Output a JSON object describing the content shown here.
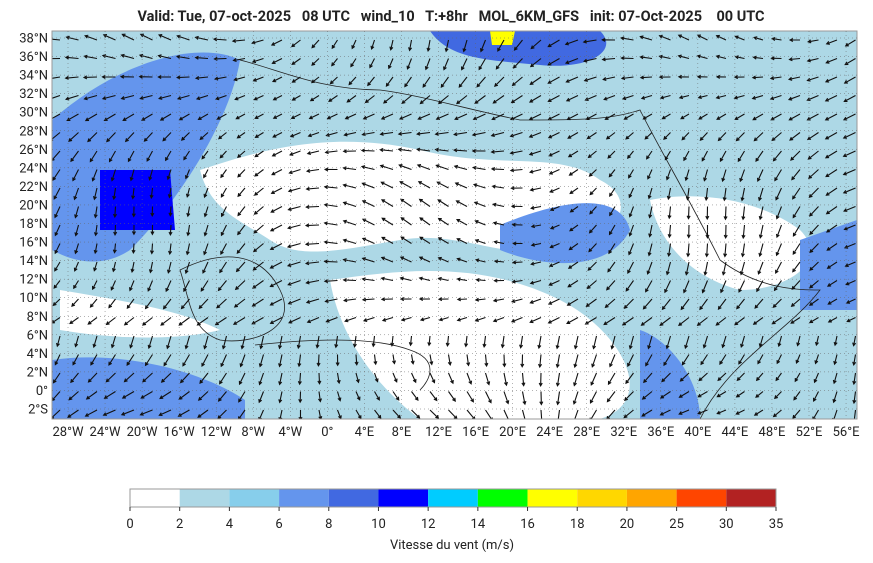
{
  "title": "Valid: Tue, 07-oct-2025   08 UTC   wind_10   T:+8hr   MOL_6KM_GFS   init: 07-Oct-2025    00 UTC",
  "lat_labels": [
    "38°N",
    "36°N",
    "34°N",
    "32°N",
    "30°N",
    "28°N",
    "26°N",
    "24°N",
    "22°N",
    "20°N",
    "18°N",
    "16°N",
    "14°N",
    "12°N",
    "10°N",
    "8°N",
    "6°N",
    "4°N",
    "2°N",
    "0°",
    "2°S"
  ],
  "lon_labels": [
    "28°W",
    "24°W",
    "20°W",
    "16°W",
    "12°W",
    "8°W",
    "4°W",
    "0°",
    "4°E",
    "8°E",
    "12°E",
    "16°E",
    "20°E",
    "24°E",
    "28°E",
    "32°E",
    "36°E",
    "40°E",
    "44°E",
    "48°E",
    "52°E",
    "56°E"
  ],
  "colorbar": {
    "label": "Vitesse du vent (m/s)",
    "ticks": [
      0,
      2,
      4,
      6,
      8,
      10,
      12,
      14,
      16,
      18,
      20,
      25,
      30,
      35
    ],
    "colors": [
      "#ffffff",
      "#add8e6",
      "#87ceeb",
      "#6495ed",
      "#4169e1",
      "#0000ff",
      "#00ccff",
      "#00ff00",
      "#ffff00",
      "#ffd700",
      "#ffa500",
      "#ff4500",
      "#b22222"
    ]
  }
}
